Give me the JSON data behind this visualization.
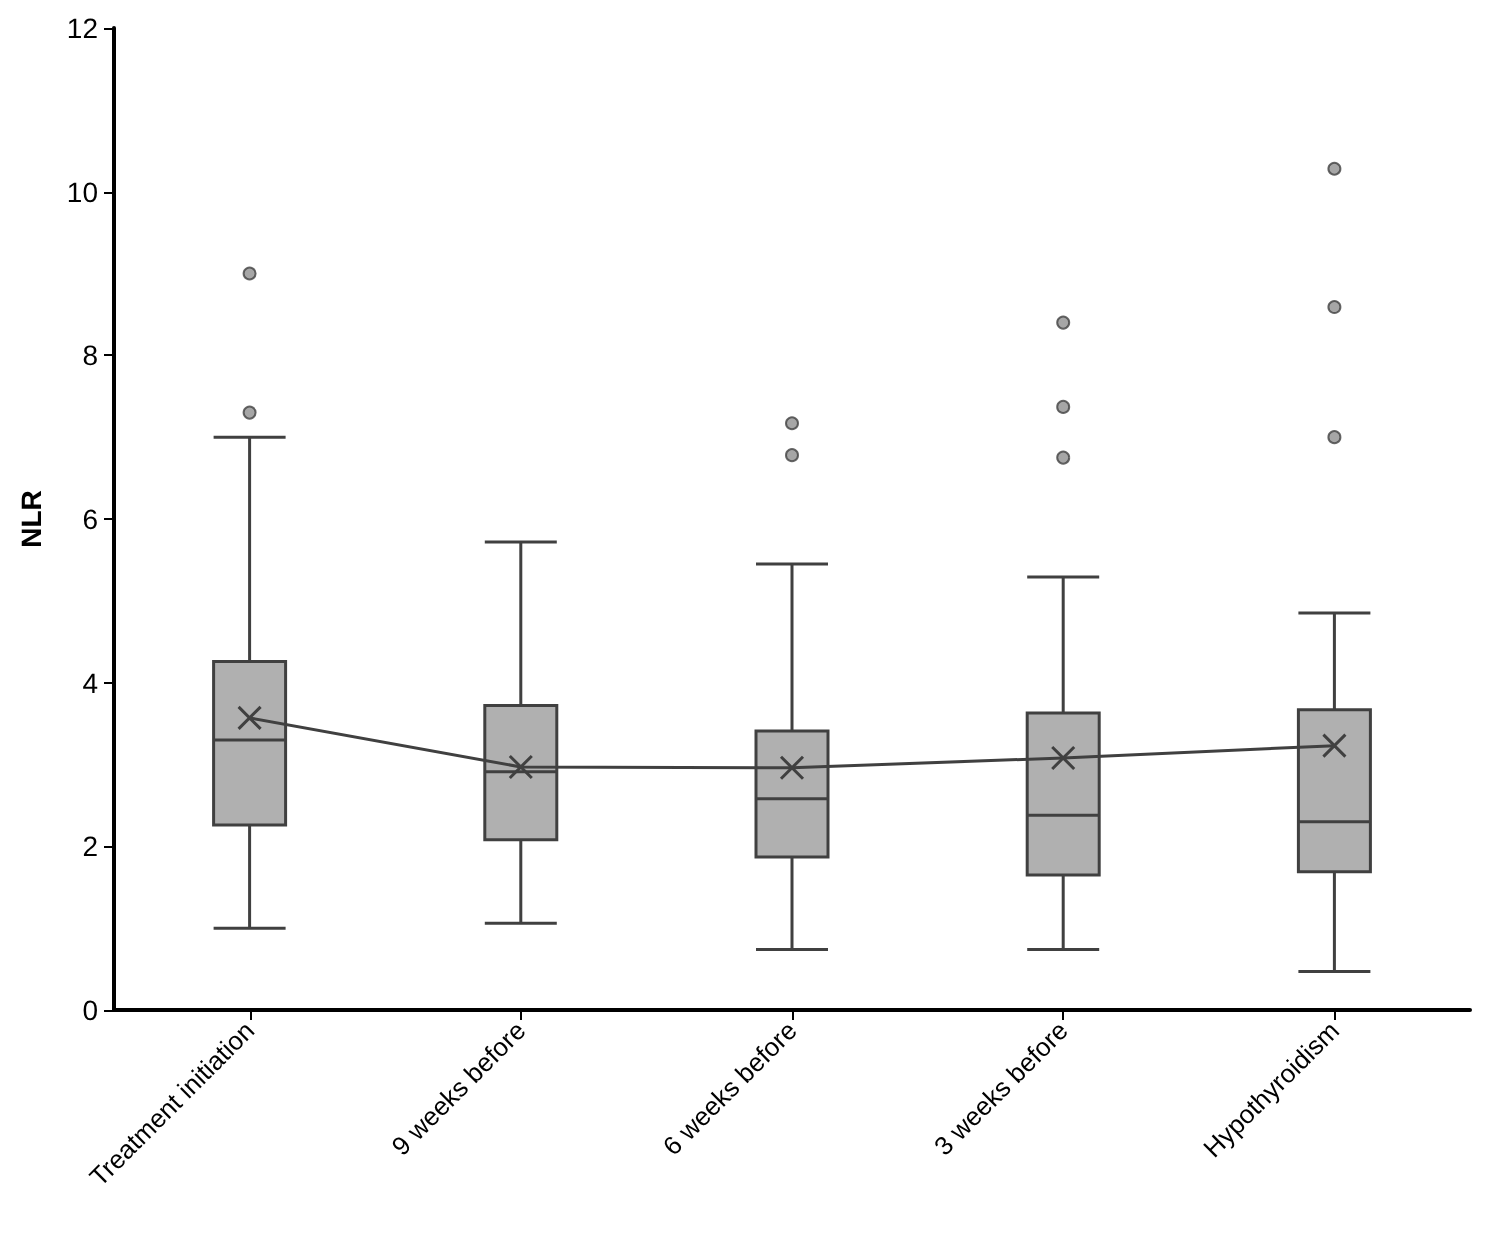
{
  "chart_data": {
    "type": "box",
    "ylabel": "NLR",
    "categories": [
      "Treatment initiation",
      "9 weeks before",
      "6 weeks before",
      "3 weeks before",
      "Hypothyroidism"
    ],
    "ylim": [
      0,
      12
    ],
    "yticks": [
      0,
      2,
      4,
      6,
      8,
      10,
      12
    ],
    "grid": false,
    "series": [
      {
        "type": "box",
        "color": "#b0b0b0",
        "boxes": [
          {
            "low": 1.0,
            "q1": 2.26,
            "median": 3.3,
            "q3": 4.26,
            "high": 7.0,
            "outliers": [
              9.0,
              7.3
            ]
          },
          {
            "low": 1.06,
            "q1": 2.08,
            "median": 2.91,
            "q3": 3.72,
            "high": 5.72
          },
          {
            "low": 0.74,
            "q1": 1.87,
            "median": 2.58,
            "q3": 3.41,
            "high": 5.45,
            "outliers": [
              7.17,
              6.78
            ]
          },
          {
            "low": 0.74,
            "q1": 1.65,
            "median": 2.38,
            "q3": 3.63,
            "high": 5.29,
            "outliers": [
              8.4,
              7.37,
              6.75
            ]
          },
          {
            "low": 0.47,
            "q1": 1.69,
            "median": 2.3,
            "q3": 3.67,
            "high": 4.85,
            "outliers": [
              10.28,
              8.59,
              7.0
            ]
          }
        ]
      },
      {
        "type": "line",
        "color": "#404040",
        "marker": "cross",
        "values": [
          3.57,
          2.97,
          2.96,
          3.08,
          3.23
        ]
      }
    ]
  }
}
